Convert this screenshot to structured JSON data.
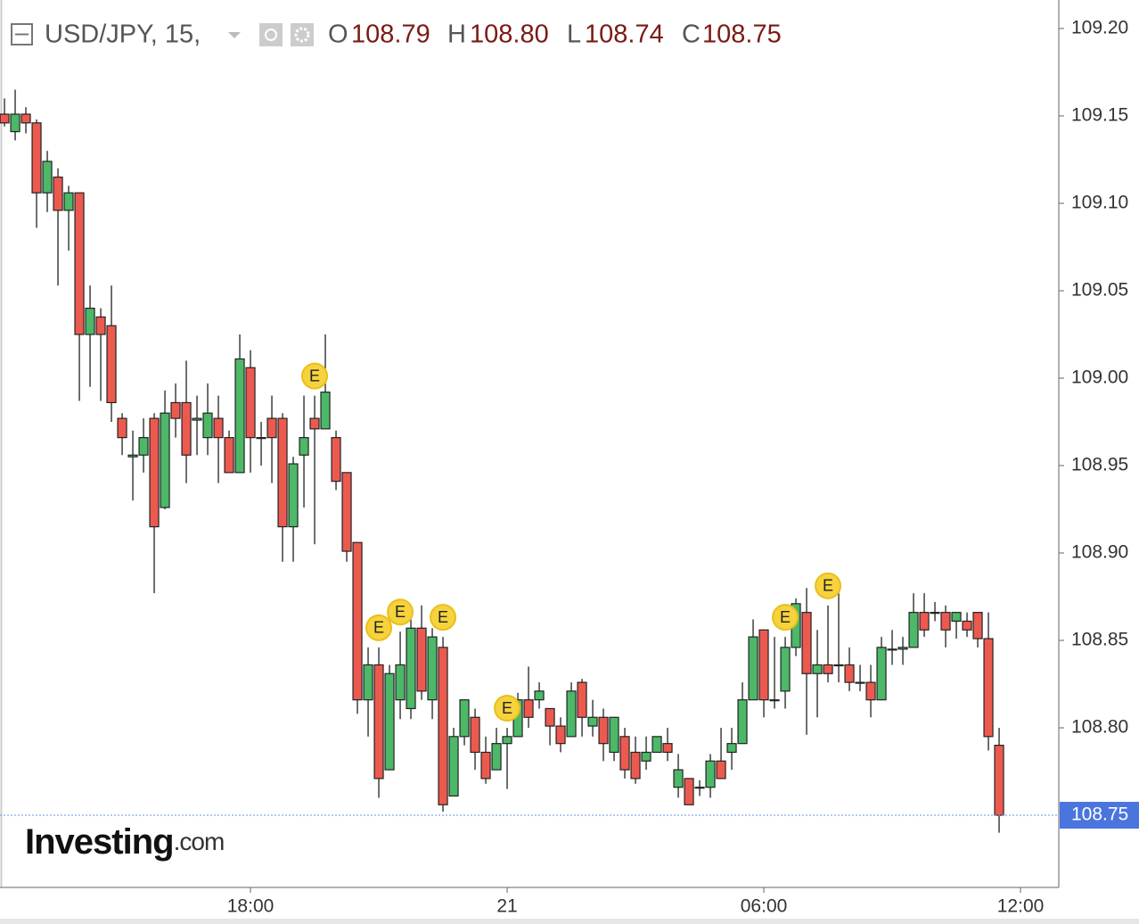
{
  "chart_data": {
    "type": "candlestick",
    "header": {
      "symbol": "USD/JPY, 15,",
      "ohlc": [
        {
          "label": "O",
          "value": "108.79"
        },
        {
          "label": "H",
          "value": "108.80"
        },
        {
          "label": "L",
          "value": "108.74"
        },
        {
          "label": "C",
          "value": "108.75"
        }
      ]
    },
    "x": [
      0,
      1,
      2,
      3,
      4,
      5,
      6,
      7,
      8,
      9,
      10,
      11,
      12,
      13,
      14,
      15,
      16,
      17,
      18,
      19,
      20,
      21,
      22,
      23,
      24,
      25,
      26,
      27,
      28,
      29,
      30,
      31,
      32,
      33,
      34,
      35,
      36,
      37,
      38,
      39,
      40,
      41,
      42,
      43,
      44,
      45,
      46,
      47,
      48,
      49,
      50,
      51,
      52,
      53,
      54,
      55,
      56,
      57,
      58,
      59,
      60,
      61,
      62,
      63,
      64,
      65,
      66,
      67,
      68,
      69,
      70,
      71,
      72,
      73,
      74,
      75,
      76,
      77,
      78,
      79,
      80,
      81,
      82,
      83,
      84,
      85,
      86,
      87,
      88,
      89,
      90,
      91,
      92,
      93
    ],
    "open": [
      109.151,
      109.141,
      109.151,
      109.146,
      109.106,
      109.115,
      109.096,
      109.106,
      109.025,
      109.035,
      109.03,
      108.977,
      108.955,
      108.956,
      108.977,
      108.926,
      108.986,
      108.986,
      108.976,
      108.966,
      108.977,
      108.966,
      108.946,
      109.006,
      108.966,
      108.977,
      108.977,
      108.915,
      108.956,
      108.977,
      108.971,
      108.966,
      108.946,
      108.906,
      108.816,
      108.836,
      108.776,
      108.816,
      108.811,
      108.857,
      108.816,
      108.846,
      108.761,
      108.795,
      108.806,
      108.786,
      108.776,
      108.791,
      108.795,
      108.816,
      108.816,
      108.811,
      108.801,
      108.795,
      108.826,
      108.801,
      108.806,
      108.786,
      108.795,
      108.786,
      108.781,
      108.786,
      108.791,
      108.766,
      108.771,
      108.766,
      108.766,
      108.781,
      108.786,
      108.791,
      108.816,
      108.856,
      108.816,
      108.821,
      108.846,
      108.866,
      108.831,
      108.836,
      108.836,
      108.836,
      108.826,
      108.826,
      108.816,
      108.845,
      108.845,
      108.846,
      108.866,
      108.866,
      108.866,
      108.861,
      108.861,
      108.866,
      108.851,
      108.79
    ],
    "high": [
      109.16,
      109.165,
      109.155,
      109.148,
      109.13,
      109.12,
      109.11,
      109.106,
      109.053,
      109.04,
      109.053,
      108.98,
      108.97,
      108.977,
      108.98,
      108.993,
      108.997,
      109.01,
      108.99,
      108.997,
      108.99,
      108.97,
      109.025,
      109.016,
      108.975,
      108.99,
      108.98,
      108.955,
      108.99,
      108.99,
      109.025,
      108.97,
      108.946,
      108.906,
      108.846,
      108.846,
      108.836,
      108.855,
      108.862,
      108.87,
      108.857,
      108.852,
      108.8,
      108.816,
      108.811,
      108.795,
      108.8,
      108.8,
      108.82,
      108.835,
      108.826,
      108.811,
      108.806,
      108.826,
      108.828,
      108.816,
      108.811,
      108.806,
      108.8,
      108.795,
      108.795,
      108.795,
      108.8,
      108.785,
      108.771,
      108.77,
      108.785,
      108.8,
      108.8,
      108.826,
      108.862,
      108.856,
      108.852,
      108.852,
      108.874,
      108.88,
      108.856,
      108.87,
      108.88,
      108.846,
      108.836,
      108.836,
      108.852,
      108.856,
      108.852,
      108.877,
      108.877,
      108.872,
      108.87,
      108.866,
      108.866,
      108.866,
      108.866,
      108.8
    ],
    "low": [
      109.144,
      109.136,
      109.14,
      109.086,
      109.095,
      109.053,
      109.073,
      108.987,
      108.995,
      108.987,
      108.975,
      108.956,
      108.93,
      108.946,
      108.877,
      108.925,
      108.966,
      108.94,
      108.956,
      108.956,
      108.94,
      108.946,
      108.946,
      108.946,
      108.95,
      108.94,
      108.895,
      108.895,
      108.926,
      108.905,
      108.971,
      108.936,
      108.895,
      108.808,
      108.795,
      108.76,
      108.776,
      108.805,
      108.805,
      108.816,
      108.805,
      108.752,
      108.761,
      108.79,
      108.776,
      108.768,
      108.776,
      108.765,
      108.8,
      108.8,
      108.811,
      108.79,
      108.786,
      108.795,
      108.795,
      108.795,
      108.781,
      108.781,
      108.771,
      108.768,
      108.776,
      108.786,
      108.781,
      108.76,
      108.756,
      108.761,
      108.76,
      108.771,
      108.776,
      108.791,
      108.816,
      108.806,
      108.811,
      108.811,
      108.841,
      108.796,
      108.806,
      108.826,
      108.826,
      108.821,
      108.821,
      108.806,
      108.816,
      108.836,
      108.836,
      108.846,
      108.852,
      108.861,
      108.846,
      108.851,
      108.852,
      108.846,
      108.787,
      108.74
    ],
    "close": [
      109.146,
      109.151,
      109.146,
      109.106,
      109.124,
      109.096,
      109.106,
      109.025,
      109.04,
      109.025,
      108.986,
      108.966,
      108.956,
      108.966,
      108.915,
      108.98,
      108.977,
      108.956,
      108.977,
      108.98,
      108.966,
      108.946,
      109.011,
      108.966,
      108.966,
      108.966,
      108.915,
      108.951,
      108.966,
      108.971,
      108.992,
      108.941,
      108.901,
      108.816,
      108.836,
      108.771,
      108.831,
      108.836,
      108.857,
      108.821,
      108.852,
      108.756,
      108.795,
      108.816,
      108.786,
      108.771,
      108.791,
      108.795,
      108.816,
      108.806,
      108.821,
      108.801,
      108.791,
      108.821,
      108.806,
      108.806,
      108.791,
      108.806,
      108.776,
      108.771,
      108.786,
      108.795,
      108.786,
      108.776,
      108.756,
      108.766,
      108.781,
      108.771,
      108.791,
      108.816,
      108.852,
      108.816,
      108.816,
      108.846,
      108.871,
      108.831,
      108.836,
      108.831,
      108.836,
      108.826,
      108.826,
      108.816,
      108.846,
      108.845,
      108.846,
      108.866,
      108.856,
      108.866,
      108.856,
      108.866,
      108.856,
      108.851,
      108.795,
      108.75
    ],
    "up_color": "#4cb868",
    "down_color": "#ec5a4f",
    "events": [
      {
        "x": 29,
        "label": "E"
      },
      {
        "x": 35,
        "label": "E"
      },
      {
        "x": 37,
        "label": "E"
      },
      {
        "x": 41,
        "label": "E"
      },
      {
        "x": 47,
        "label": "E"
      },
      {
        "x": 73,
        "label": "E"
      },
      {
        "x": 77,
        "label": "E"
      }
    ],
    "xlim": [
      -0.42,
      98.58
    ],
    "xticks": [
      {
        "value": 23,
        "label": "18:00"
      },
      {
        "value": 47,
        "label": "21"
      },
      {
        "value": 71,
        "label": "06:00"
      },
      {
        "value": 95,
        "label": "12:00"
      }
    ],
    "ylim": [
      108.7087,
      109.2163
    ],
    "yticks": [
      {
        "value": 109.2,
        "label": "109.20"
      },
      109.15,
      {
        "value": 109.1,
        "label": "109.10"
      },
      109.05,
      {
        "value": 109.0,
        "label": "109.00"
      },
      108.95,
      {
        "value": 108.9,
        "label": "108.90"
      },
      108.85,
      {
        "value": 108.8,
        "label": "108.80"
      }
    ],
    "last_price": 108.75,
    "watermark": {
      "main": "Investing",
      "suffix": ".com"
    }
  }
}
